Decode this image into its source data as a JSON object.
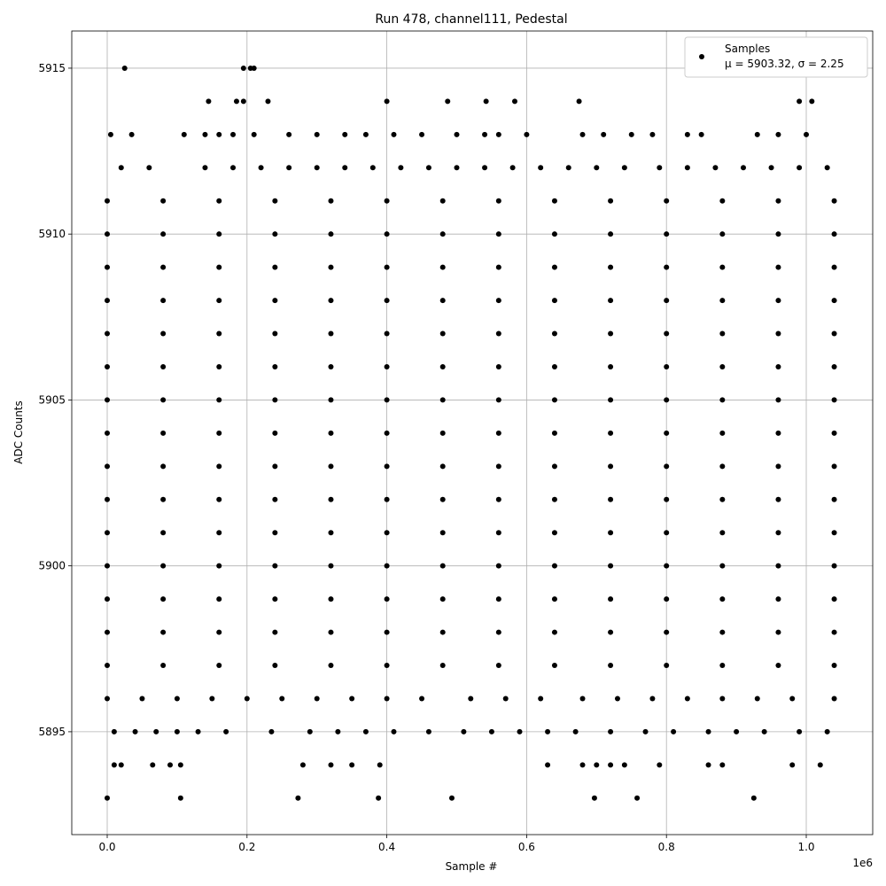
{
  "chart_data": {
    "type": "scatter",
    "title": "Run 478, channel111, Pedestal",
    "x_label": "Sample #",
    "y_label": "ADC Counts",
    "x_offset_label": "1e6",
    "xlim": [
      -50700,
      1095050
    ],
    "xticks": [
      {
        "value": 0,
        "label": "0.0"
      },
      {
        "value": 200000,
        "label": "0.2"
      },
      {
        "value": 400000,
        "label": "0.4"
      },
      {
        "value": 600000,
        "label": "0.6"
      },
      {
        "value": 800000,
        "label": "0.8"
      },
      {
        "value": 1000000,
        "label": "1.0"
      }
    ],
    "ylim": [
      5891.9,
      5916.12
    ],
    "yticks": [
      5895,
      5900,
      5905,
      5910,
      5915
    ],
    "grid": true,
    "legend_loc": "upper right",
    "legend_note": "μ = 5903.32, σ = 2.25",
    "x": [
      25000,
      195000,
      205000,
      210000,
      145000,
      185000,
      195000,
      230000,
      400000,
      487000,
      542000,
      583000,
      675000,
      990000,
      1008000,
      5000,
      35000,
      110000,
      140000,
      160000,
      180000,
      210000,
      260000,
      300000,
      340000,
      370000,
      410000,
      450000,
      500000,
      540000,
      560000,
      600000,
      680000,
      710000,
      750000,
      780000,
      830000,
      850000,
      930000,
      960000,
      1000000,
      20000,
      60000,
      140000,
      180000,
      220000,
      260000,
      300000,
      340000,
      380000,
      420000,
      460000,
      500000,
      540000,
      580000,
      620000,
      660000,
      700000,
      740000,
      790000,
      830000,
      870000,
      910000,
      950000,
      990000,
      1030000,
      0,
      80000,
      160000,
      240000,
      320000,
      400000,
      480000,
      560000,
      640000,
      720000,
      800000,
      880000,
      960000,
      1040000,
      0,
      80000,
      160000,
      240000,
      320000,
      400000,
      480000,
      560000,
      640000,
      720000,
      800000,
      880000,
      960000,
      1040000,
      0,
      80000,
      160000,
      240000,
      320000,
      400000,
      480000,
      560000,
      640000,
      720000,
      800000,
      880000,
      960000,
      1040000,
      0,
      80000,
      160000,
      240000,
      320000,
      400000,
      480000,
      560000,
      640000,
      720000,
      800000,
      880000,
      960000,
      1040000,
      0,
      80000,
      160000,
      240000,
      320000,
      400000,
      480000,
      560000,
      640000,
      720000,
      800000,
      880000,
      960000,
      1040000,
      0,
      80000,
      160000,
      240000,
      320000,
      400000,
      480000,
      560000,
      640000,
      720000,
      800000,
      880000,
      960000,
      1040000,
      0,
      80000,
      160000,
      240000,
      320000,
      400000,
      480000,
      560000,
      640000,
      720000,
      800000,
      880000,
      960000,
      1040000,
      0,
      80000,
      160000,
      240000,
      320000,
      400000,
      480000,
      560000,
      640000,
      720000,
      800000,
      880000,
      960000,
      1040000,
      0,
      80000,
      160000,
      240000,
      320000,
      400000,
      480000,
      560000,
      640000,
      720000,
      800000,
      880000,
      960000,
      1040000,
      0,
      80000,
      160000,
      240000,
      320000,
      400000,
      480000,
      560000,
      640000,
      720000,
      800000,
      880000,
      960000,
      1040000,
      0,
      80000,
      160000,
      240000,
      320000,
      400000,
      480000,
      560000,
      640000,
      720000,
      800000,
      880000,
      960000,
      1040000,
      0,
      80000,
      160000,
      240000,
      320000,
      400000,
      480000,
      560000,
      640000,
      720000,
      800000,
      880000,
      960000,
      1040000,
      0,
      80000,
      160000,
      240000,
      320000,
      400000,
      480000,
      560000,
      640000,
      720000,
      800000,
      880000,
      960000,
      1040000,
      0,
      80000,
      160000,
      240000,
      320000,
      400000,
      480000,
      560000,
      640000,
      720000,
      800000,
      880000,
      960000,
      1040000,
      0,
      80000,
      160000,
      240000,
      320000,
      400000,
      480000,
      560000,
      640000,
      720000,
      800000,
      880000,
      960000,
      1040000,
      0,
      50000,
      100000,
      150000,
      200000,
      250000,
      300000,
      350000,
      400000,
      450000,
      520000,
      570000,
      620000,
      680000,
      730000,
      780000,
      830000,
      880000,
      930000,
      980000,
      1040000,
      10000,
      40000,
      70000,
      100000,
      130000,
      170000,
      235000,
      290000,
      330000,
      370000,
      410000,
      460000,
      510000,
      550000,
      590000,
      630000,
      670000,
      720000,
      770000,
      810000,
      860000,
      900000,
      940000,
      990000,
      1030000,
      10000,
      20000,
      65000,
      90000,
      105000,
      280000,
      320000,
      350000,
      390000,
      630000,
      680000,
      700000,
      720000,
      740000,
      790000,
      860000,
      880000,
      980000,
      1020000,
      0,
      105000,
      273000,
      388000,
      493000,
      697000,
      758000,
      925000
    ],
    "series": [
      {
        "name": "Samples",
        "color": "#000000",
        "values": [
          5915,
          5915,
          5915,
          5915,
          5914,
          5914,
          5914,
          5914,
          5914,
          5914,
          5914,
          5914,
          5914,
          5914,
          5914,
          5913,
          5913,
          5913,
          5913,
          5913,
          5913,
          5913,
          5913,
          5913,
          5913,
          5913,
          5913,
          5913,
          5913,
          5913,
          5913,
          5913,
          5913,
          5913,
          5913,
          5913,
          5913,
          5913,
          5913,
          5913,
          5913,
          5912,
          5912,
          5912,
          5912,
          5912,
          5912,
          5912,
          5912,
          5912,
          5912,
          5912,
          5912,
          5912,
          5912,
          5912,
          5912,
          5912,
          5912,
          5912,
          5912,
          5912,
          5912,
          5912,
          5912,
          5912,
          5911,
          5911,
          5911,
          5911,
          5911,
          5911,
          5911,
          5911,
          5911,
          5911,
          5911,
          5911,
          5911,
          5911,
          5910,
          5910,
          5910,
          5910,
          5910,
          5910,
          5910,
          5910,
          5910,
          5910,
          5910,
          5910,
          5910,
          5910,
          5909,
          5909,
          5909,
          5909,
          5909,
          5909,
          5909,
          5909,
          5909,
          5909,
          5909,
          5909,
          5909,
          5909,
          5908,
          5908,
          5908,
          5908,
          5908,
          5908,
          5908,
          5908,
          5908,
          5908,
          5908,
          5908,
          5908,
          5908,
          5907,
          5907,
          5907,
          5907,
          5907,
          5907,
          5907,
          5907,
          5907,
          5907,
          5907,
          5907,
          5907,
          5907,
          5906,
          5906,
          5906,
          5906,
          5906,
          5906,
          5906,
          5906,
          5906,
          5906,
          5906,
          5906,
          5906,
          5906,
          5905,
          5905,
          5905,
          5905,
          5905,
          5905,
          5905,
          5905,
          5905,
          5905,
          5905,
          5905,
          5905,
          5905,
          5904,
          5904,
          5904,
          5904,
          5904,
          5904,
          5904,
          5904,
          5904,
          5904,
          5904,
          5904,
          5904,
          5904,
          5903,
          5903,
          5903,
          5903,
          5903,
          5903,
          5903,
          5903,
          5903,
          5903,
          5903,
          5903,
          5903,
          5903,
          5902,
          5902,
          5902,
          5902,
          5902,
          5902,
          5902,
          5902,
          5902,
          5902,
          5902,
          5902,
          5902,
          5902,
          5901,
          5901,
          5901,
          5901,
          5901,
          5901,
          5901,
          5901,
          5901,
          5901,
          5901,
          5901,
          5901,
          5901,
          5900,
          5900,
          5900,
          5900,
          5900,
          5900,
          5900,
          5900,
          5900,
          5900,
          5900,
          5900,
          5900,
          5900,
          5899,
          5899,
          5899,
          5899,
          5899,
          5899,
          5899,
          5899,
          5899,
          5899,
          5899,
          5899,
          5899,
          5899,
          5898,
          5898,
          5898,
          5898,
          5898,
          5898,
          5898,
          5898,
          5898,
          5898,
          5898,
          5898,
          5898,
          5898,
          5897,
          5897,
          5897,
          5897,
          5897,
          5897,
          5897,
          5897,
          5897,
          5897,
          5897,
          5897,
          5897,
          5897,
          5896,
          5896,
          5896,
          5896,
          5896,
          5896,
          5896,
          5896,
          5896,
          5896,
          5896,
          5896,
          5896,
          5896,
          5896,
          5896,
          5896,
          5896,
          5896,
          5896,
          5896,
          5895,
          5895,
          5895,
          5895,
          5895,
          5895,
          5895,
          5895,
          5895,
          5895,
          5895,
          5895,
          5895,
          5895,
          5895,
          5895,
          5895,
          5895,
          5895,
          5895,
          5895,
          5895,
          5895,
          5895,
          5895,
          5894,
          5894,
          5894,
          5894,
          5894,
          5894,
          5894,
          5894,
          5894,
          5894,
          5894,
          5894,
          5894,
          5894,
          5894,
          5894,
          5894,
          5894,
          5894,
          5893,
          5893,
          5893,
          5893,
          5893,
          5893,
          5893,
          5893
        ]
      }
    ]
  }
}
